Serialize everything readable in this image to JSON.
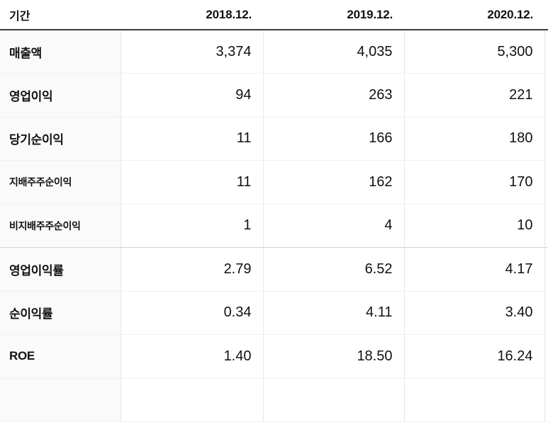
{
  "table": {
    "header": {
      "period_label": "기간",
      "columns": [
        "2018.12.",
        "2019.12.",
        "2020.12."
      ]
    },
    "rows": [
      {
        "label": "매출액",
        "values": [
          "3,374",
          "4,035",
          "5,300"
        ],
        "style": "main",
        "group_end": false
      },
      {
        "label": "영업이익",
        "values": [
          "94",
          "263",
          "221"
        ],
        "style": "main",
        "group_end": false
      },
      {
        "label": "당기순이익",
        "values": [
          "11",
          "166",
          "180"
        ],
        "style": "main",
        "group_end": false
      },
      {
        "label": "지배주주순이익",
        "values": [
          "11",
          "162",
          "170"
        ],
        "style": "sub",
        "group_end": false
      },
      {
        "label": "비지배주주순이익",
        "values": [
          "1",
          "4",
          "10"
        ],
        "style": "sub",
        "group_end": true
      },
      {
        "label": "영업이익률",
        "values": [
          "2.79",
          "6.52",
          "4.17"
        ],
        "style": "main",
        "group_end": false
      },
      {
        "label": "순이익률",
        "values": [
          "0.34",
          "4.11",
          "3.40"
        ],
        "style": "main",
        "group_end": false
      },
      {
        "label": "ROE",
        "values": [
          "1.40",
          "18.50",
          "16.24"
        ],
        "style": "main",
        "group_end": false
      }
    ]
  },
  "colors": {
    "header_border": "#3c3c3c",
    "row_border": "#f0f0f0",
    "group_border": "#d5d5d5",
    "column_border": "#e7e7e7",
    "label_column_bg": "#fafafa",
    "text": "#111111"
  }
}
